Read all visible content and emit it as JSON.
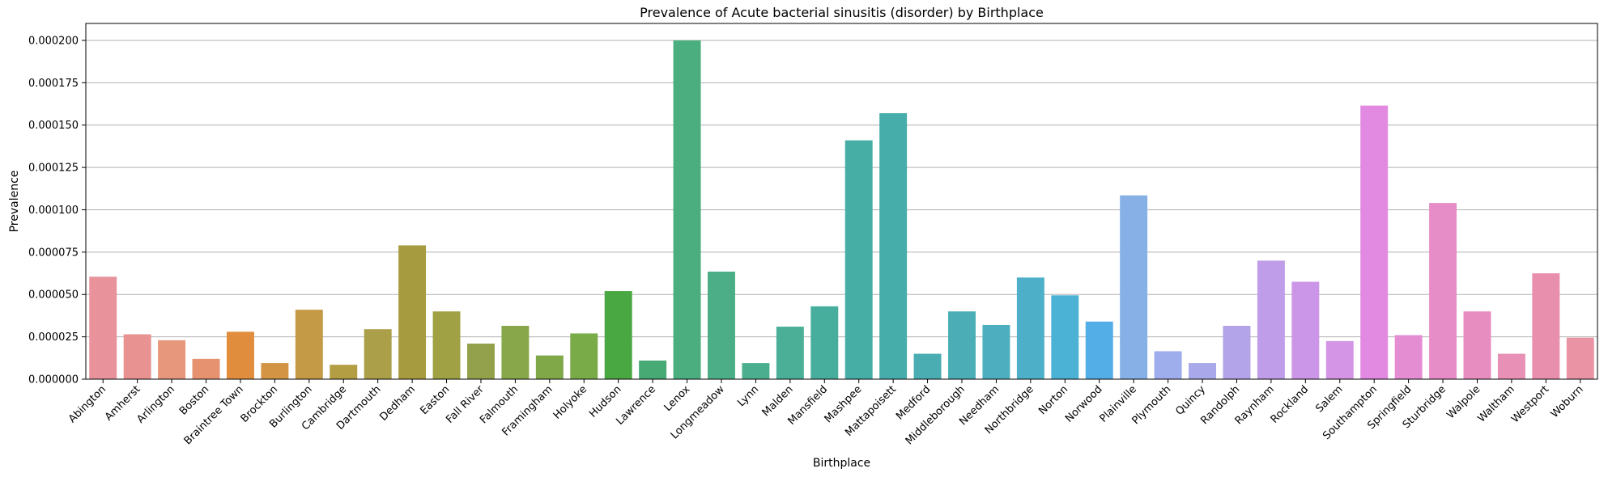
{
  "chart_data": {
    "type": "bar",
    "title": "Prevalence of Acute bacterial sinusitis (disorder) by Birthplace",
    "xlabel": "Birthplace",
    "ylabel": "Prevalence",
    "ylim": [
      0,
      0.00021
    ],
    "yticks": [
      0,
      2.5e-05,
      5e-05,
      7.5e-05,
      0.0001,
      0.000125,
      0.00015,
      0.000175,
      0.0002
    ],
    "ytick_labels": [
      "0.000000",
      "0.000025",
      "0.000050",
      "0.000075",
      "0.000100",
      "0.000125",
      "0.000150",
      "0.000175",
      "0.000200"
    ],
    "grid": "horizontal",
    "categories": [
      "Abington",
      "Amherst",
      "Arlington",
      "Boston",
      "Braintree Town",
      "Brockton",
      "Burlington",
      "Cambridge",
      "Dartmouth",
      "Dedham",
      "Easton",
      "Fall River",
      "Falmouth",
      "Framingham",
      "Holyoke",
      "Hudson",
      "Lawrence",
      "Lenox",
      "Longmeadow",
      "Lynn",
      "Malden",
      "Mansfield",
      "Mashpee",
      "Mattapoisett",
      "Medford",
      "Middleborough",
      "Needham",
      "Northbridge",
      "Norton",
      "Norwood",
      "Plainville",
      "Plymouth",
      "Quincy",
      "Randolph",
      "Raynham",
      "Rockland",
      "Salem",
      "Southampton",
      "Springfield",
      "Sturbridge",
      "Walpole",
      "Waltham",
      "Westport",
      "Woburn"
    ],
    "values": [
      6.05e-05,
      2.65e-05,
      2.3e-05,
      1.2e-05,
      2.8e-05,
      9.5e-06,
      4.1e-05,
      8.5e-06,
      2.95e-05,
      7.9e-05,
      4e-05,
      2.1e-05,
      3.15e-05,
      1.4e-05,
      2.7e-05,
      5.2e-05,
      1.1e-05,
      0.0002,
      6.35e-05,
      9.5e-06,
      3.1e-05,
      4.3e-05,
      0.000141,
      0.000157,
      1.5e-05,
      4e-05,
      3.2e-05,
      6e-05,
      4.95e-05,
      3.4e-05,
      0.0001085,
      1.65e-05,
      9.5e-06,
      3.15e-05,
      7e-05,
      5.75e-05,
      2.25e-05,
      0.0001615,
      2.6e-05,
      0.000104,
      4e-05,
      1.5e-05,
      6.25e-05,
      2.45e-05
    ],
    "colors": [
      "#e8939c",
      "#e89391",
      "#e7977c",
      "#e69270",
      "#e18d3e",
      "#d39444",
      "#c59a46",
      "#b39e44",
      "#ab9f4a",
      "#a79b40",
      "#a0a044",
      "#93a04c",
      "#88a64a",
      "#80a748",
      "#79ab49",
      "#4aa842",
      "#47aa74",
      "#4aae7f",
      "#4cae87",
      "#4baf8f",
      "#4aaf96",
      "#47ae9e",
      "#46aea5",
      "#47adab",
      "#49adb1",
      "#4badb6",
      "#4caebe",
      "#4dafc8",
      "#4bb2d6",
      "#53ade6",
      "#87b1e6",
      "#9eadec",
      "#a8a8ea",
      "#b3a3e9",
      "#c09de9",
      "#cc96e8",
      "#d595e6",
      "#e28ae2",
      "#e58dd3",
      "#e68dc8",
      "#e88dbf",
      "#e890b6",
      "#e98fae",
      "#e993a4"
    ]
  }
}
